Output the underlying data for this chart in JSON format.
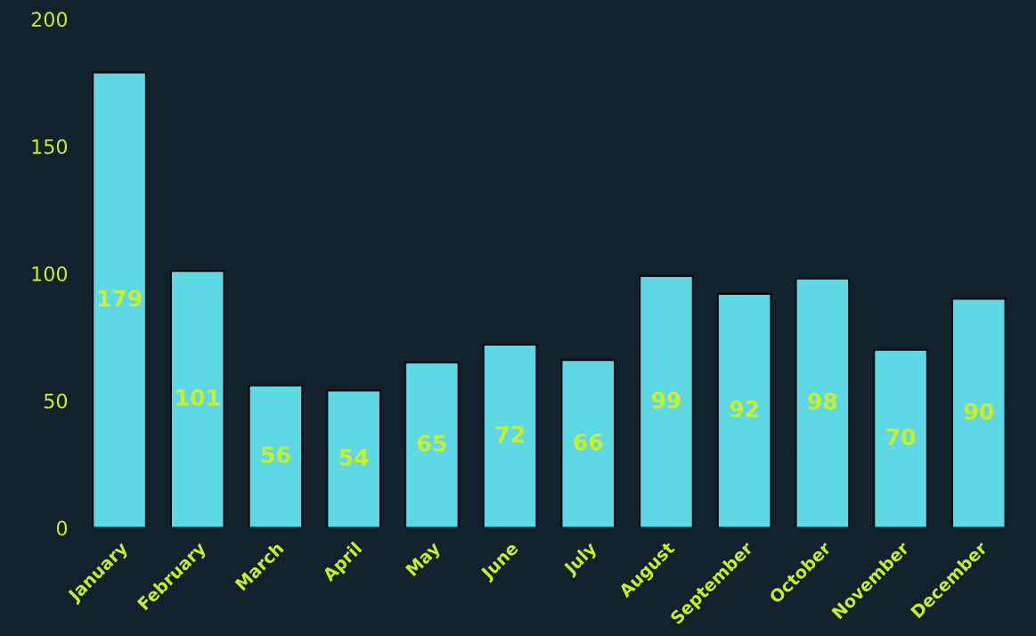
{
  "chart_data": {
    "type": "bar",
    "categories": [
      "January",
      "February",
      "March",
      "April",
      "May",
      "June",
      "July",
      "August",
      "September",
      "October",
      "November",
      "December"
    ],
    "values": [
      179,
      101,
      56,
      54,
      65,
      72,
      66,
      99,
      92,
      98,
      70,
      90
    ],
    "color": "#5fd8e6",
    "ylim": [
      0,
      200
    ],
    "yticks": [
      0,
      50,
      100,
      150,
      200
    ],
    "data_labels": true,
    "grid": false,
    "legend": false
  }
}
